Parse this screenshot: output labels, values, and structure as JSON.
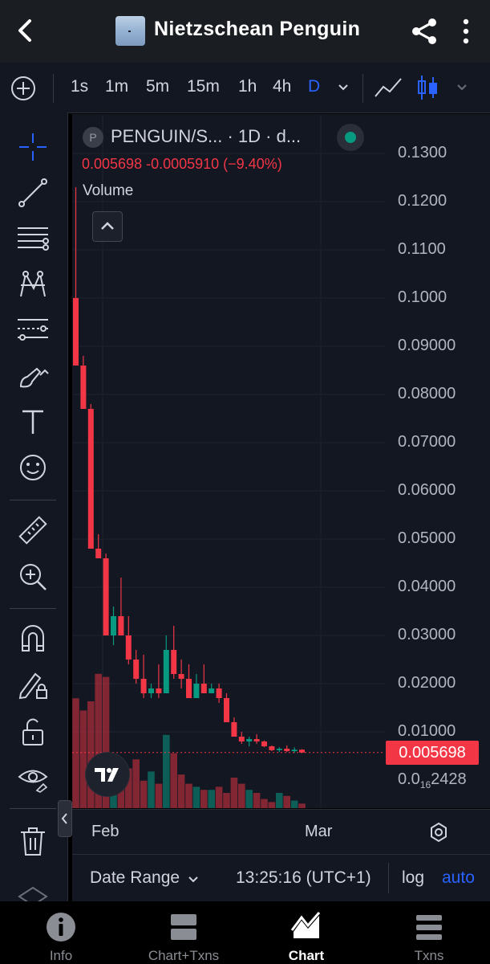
{
  "header": {
    "title": "Nietzschean Penguin",
    "back_icon": "chevron-left-icon",
    "share_icon": "share-icon",
    "more_icon": "more-vertical-icon"
  },
  "toolbar": {
    "timeframes": [
      "1s",
      "1m",
      "5m",
      "15m",
      "1h",
      "4h",
      "D"
    ],
    "active_timeframe": "D"
  },
  "legend": {
    "symbol_letter": "P",
    "title": "PENGUIN/S... · 1D · d...",
    "values": "0.005698  -0.0005910 (−9.40%)",
    "volume_label": "Volume"
  },
  "price_axis": {
    "labels": [
      "0.1300",
      "0.1200",
      "0.1100",
      "0.1000",
      "0.09000",
      "0.08000",
      "0.07000",
      "0.06000",
      "0.05000",
      "0.04000",
      "0.03000",
      "0.02000",
      "0.01000"
    ],
    "current_price": "0.005698",
    "low_label_prefix": "0.0",
    "low_label_sub": "16",
    "low_label_suffix": "2428"
  },
  "time_axis": {
    "labels": [
      "Feb",
      "Mar"
    ]
  },
  "bottom_controls": {
    "date_range": "Date Range",
    "time": "13:25:16 (UTC+1)",
    "log": "log",
    "auto": "auto"
  },
  "nav": {
    "items": [
      {
        "label": "Info",
        "icon": "info-icon"
      },
      {
        "label": "Chart+Txns",
        "icon": "chart-txns-icon"
      },
      {
        "label": "Chart",
        "icon": "chart-icon"
      },
      {
        "label": "Txns",
        "icon": "list-icon"
      }
    ],
    "active": "Chart"
  },
  "colors": {
    "up": "#089981",
    "down": "#f23645",
    "accent": "#2962ff",
    "background": "#131722"
  },
  "chart_data": {
    "type": "candlestick",
    "ylim": [
      0,
      0.135
    ],
    "candles": [
      {
        "o": 0.1,
        "h": 0.123,
        "l": 0.086,
        "c": 0.086,
        "v": 0.72
      },
      {
        "o": 0.086,
        "h": 0.088,
        "l": 0.077,
        "c": 0.077,
        "v": 0.64
      },
      {
        "o": 0.077,
        "h": 0.078,
        "l": 0.048,
        "c": 0.048,
        "v": 0.7
      },
      {
        "o": 0.048,
        "h": 0.051,
        "l": 0.046,
        "c": 0.046,
        "v": 0.88
      },
      {
        "o": 0.046,
        "h": 0.047,
        "l": 0.03,
        "c": 0.03,
        "v": 0.86
      },
      {
        "o": 0.03,
        "h": 0.036,
        "l": 0.028,
        "c": 0.034,
        "v": 0.3
      },
      {
        "o": 0.034,
        "h": 0.042,
        "l": 0.03,
        "c": 0.03,
        "v": 0.24
      },
      {
        "o": 0.03,
        "h": 0.034,
        "l": 0.024,
        "c": 0.025,
        "v": 0.26
      },
      {
        "o": 0.025,
        "h": 0.027,
        "l": 0.02,
        "c": 0.021,
        "v": 0.32
      },
      {
        "o": 0.021,
        "h": 0.026,
        "l": 0.017,
        "c": 0.018,
        "v": 0.18
      },
      {
        "o": 0.018,
        "h": 0.02,
        "l": 0.017,
        "c": 0.019,
        "v": 0.24
      },
      {
        "o": 0.019,
        "h": 0.024,
        "l": 0.017,
        "c": 0.018,
        "v": 0.16
      },
      {
        "o": 0.018,
        "h": 0.03,
        "l": 0.018,
        "c": 0.027,
        "v": 0.48
      },
      {
        "o": 0.027,
        "h": 0.032,
        "l": 0.021,
        "c": 0.022,
        "v": 0.36
      },
      {
        "o": 0.022,
        "h": 0.025,
        "l": 0.019,
        "c": 0.021,
        "v": 0.22
      },
      {
        "o": 0.021,
        "h": 0.024,
        "l": 0.017,
        "c": 0.017,
        "v": 0.16
      },
      {
        "o": 0.017,
        "h": 0.022,
        "l": 0.017,
        "c": 0.02,
        "v": 0.14
      },
      {
        "o": 0.02,
        "h": 0.024,
        "l": 0.018,
        "c": 0.018,
        "v": 0.12
      },
      {
        "o": 0.018,
        "h": 0.02,
        "l": 0.018,
        "c": 0.019,
        "v": 0.12
      },
      {
        "o": 0.019,
        "h": 0.02,
        "l": 0.016,
        "c": 0.017,
        "v": 0.14
      },
      {
        "o": 0.017,
        "h": 0.018,
        "l": 0.012,
        "c": 0.012,
        "v": 0.1
      },
      {
        "o": 0.012,
        "h": 0.013,
        "l": 0.009,
        "c": 0.009,
        "v": 0.2
      },
      {
        "o": 0.009,
        "h": 0.01,
        "l": 0.0075,
        "c": 0.008,
        "v": 0.16
      },
      {
        "o": 0.008,
        "h": 0.009,
        "l": 0.007,
        "c": 0.0085,
        "v": 0.12
      },
      {
        "o": 0.0085,
        "h": 0.0095,
        "l": 0.0075,
        "c": 0.008,
        "v": 0.1
      },
      {
        "o": 0.008,
        "h": 0.0082,
        "l": 0.0068,
        "c": 0.007,
        "v": 0.06
      },
      {
        "o": 0.007,
        "h": 0.0072,
        "l": 0.006,
        "c": 0.0062,
        "v": 0.04
      },
      {
        "o": 0.0062,
        "h": 0.0068,
        "l": 0.0058,
        "c": 0.0065,
        "v": 0.1
      },
      {
        "o": 0.0065,
        "h": 0.0072,
        "l": 0.0058,
        "c": 0.006,
        "v": 0.08
      },
      {
        "o": 0.006,
        "h": 0.0068,
        "l": 0.0056,
        "c": 0.0063,
        "v": 0.05
      },
      {
        "o": 0.0063,
        "h": 0.0064,
        "l": 0.0056,
        "c": 0.0057,
        "v": 0.03
      }
    ]
  }
}
